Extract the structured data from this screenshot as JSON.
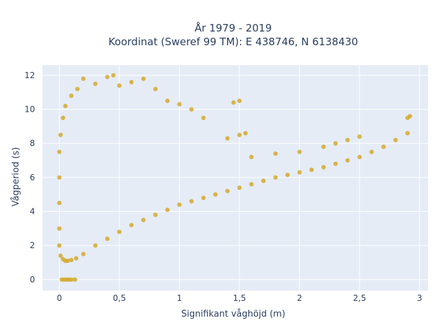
{
  "chart_data": {
    "type": "scatter",
    "title_line1": "År 1979 - 2019",
    "title_line2": "Koordinat (Sweref 99 TM): E 438746, N 6138430",
    "xlabel": "Signifikant våghöjd (m)",
    "ylabel": "Vågperiod (s)",
    "xlim": [
      -0.14,
      3.07
    ],
    "ylim": [
      -0.65,
      12.6
    ],
    "x_ticks": [
      {
        "value": 0,
        "label": "0"
      },
      {
        "value": 0.5,
        "label": "0,5"
      },
      {
        "value": 1,
        "label": "1"
      },
      {
        "value": 1.5,
        "label": "1,5"
      },
      {
        "value": 2,
        "label": "2"
      },
      {
        "value": 2.5,
        "label": "2,5"
      },
      {
        "value": 3,
        "label": "3"
      }
    ],
    "y_ticks": [
      {
        "value": 0,
        "label": "0"
      },
      {
        "value": 2,
        "label": "2"
      },
      {
        "value": 4,
        "label": "4"
      },
      {
        "value": 6,
        "label": "6"
      },
      {
        "value": 8,
        "label": "8"
      },
      {
        "value": 10,
        "label": "10"
      },
      {
        "value": 12,
        "label": "12"
      }
    ],
    "grid": true,
    "marker_color": "#d4a520",
    "plot_bg": "#e5ecf6",
    "grid_color": "#ffffff",
    "series": [
      {
        "points": [
          [
            0.02,
            0.0
          ],
          [
            0.04,
            0.0
          ],
          [
            0.06,
            0.0
          ],
          [
            0.08,
            0.0
          ],
          [
            0.1,
            0.0
          ],
          [
            0.13,
            0.0
          ],
          [
            0.01,
            1.4
          ],
          [
            0.03,
            1.2
          ],
          [
            0.05,
            1.1
          ],
          [
            0.07,
            1.1
          ],
          [
            0.1,
            1.15
          ],
          [
            0.14,
            1.25
          ],
          [
            0.2,
            1.5
          ],
          [
            0.3,
            2.0
          ],
          [
            0.4,
            2.4
          ],
          [
            0.5,
            2.8
          ],
          [
            0.6,
            3.2
          ],
          [
            0.7,
            3.5
          ],
          [
            0.8,
            3.8
          ],
          [
            0.9,
            4.1
          ],
          [
            1.0,
            4.4
          ],
          [
            1.1,
            4.6
          ],
          [
            1.2,
            4.8
          ],
          [
            1.3,
            5.0
          ],
          [
            1.4,
            5.2
          ],
          [
            1.5,
            5.4
          ],
          [
            1.6,
            5.6
          ],
          [
            1.7,
            5.8
          ],
          [
            1.8,
            6.0
          ],
          [
            1.9,
            6.15
          ],
          [
            2.0,
            6.3
          ],
          [
            2.1,
            6.45
          ],
          [
            2.2,
            6.6
          ],
          [
            2.3,
            6.8
          ],
          [
            2.4,
            7.0
          ],
          [
            2.5,
            7.2
          ],
          [
            2.6,
            7.5
          ],
          [
            2.7,
            7.8
          ],
          [
            2.8,
            8.2
          ],
          [
            2.9,
            8.6
          ],
          [
            2.9,
            9.5
          ],
          [
            2.92,
            9.6
          ],
          [
            2.5,
            8.4
          ],
          [
            2.4,
            8.2
          ],
          [
            2.3,
            8.0
          ],
          [
            2.2,
            7.8
          ],
          [
            2.0,
            7.5
          ],
          [
            1.8,
            7.4
          ],
          [
            1.6,
            7.2
          ],
          [
            1.5,
            8.5
          ],
          [
            1.55,
            8.6
          ],
          [
            1.4,
            8.3
          ],
          [
            1.45,
            10.4
          ],
          [
            1.5,
            10.5
          ],
          [
            1.2,
            9.5
          ],
          [
            1.1,
            10.0
          ],
          [
            1.0,
            10.3
          ],
          [
            0.9,
            10.5
          ],
          [
            0.8,
            11.2
          ],
          [
            0.7,
            11.8
          ],
          [
            0.6,
            11.6
          ],
          [
            0.5,
            11.4
          ],
          [
            0.45,
            12.0
          ],
          [
            0.4,
            11.9
          ],
          [
            0.3,
            11.5
          ],
          [
            0.2,
            11.8
          ],
          [
            0.15,
            11.2
          ],
          [
            0.1,
            10.8
          ],
          [
            0.05,
            10.2
          ],
          [
            0.03,
            9.5
          ],
          [
            0.01,
            8.5
          ],
          [
            0.0,
            7.5
          ],
          [
            0.0,
            6.0
          ],
          [
            0.0,
            4.5
          ],
          [
            0.0,
            3.0
          ],
          [
            0.0,
            2.0
          ]
        ]
      }
    ]
  }
}
